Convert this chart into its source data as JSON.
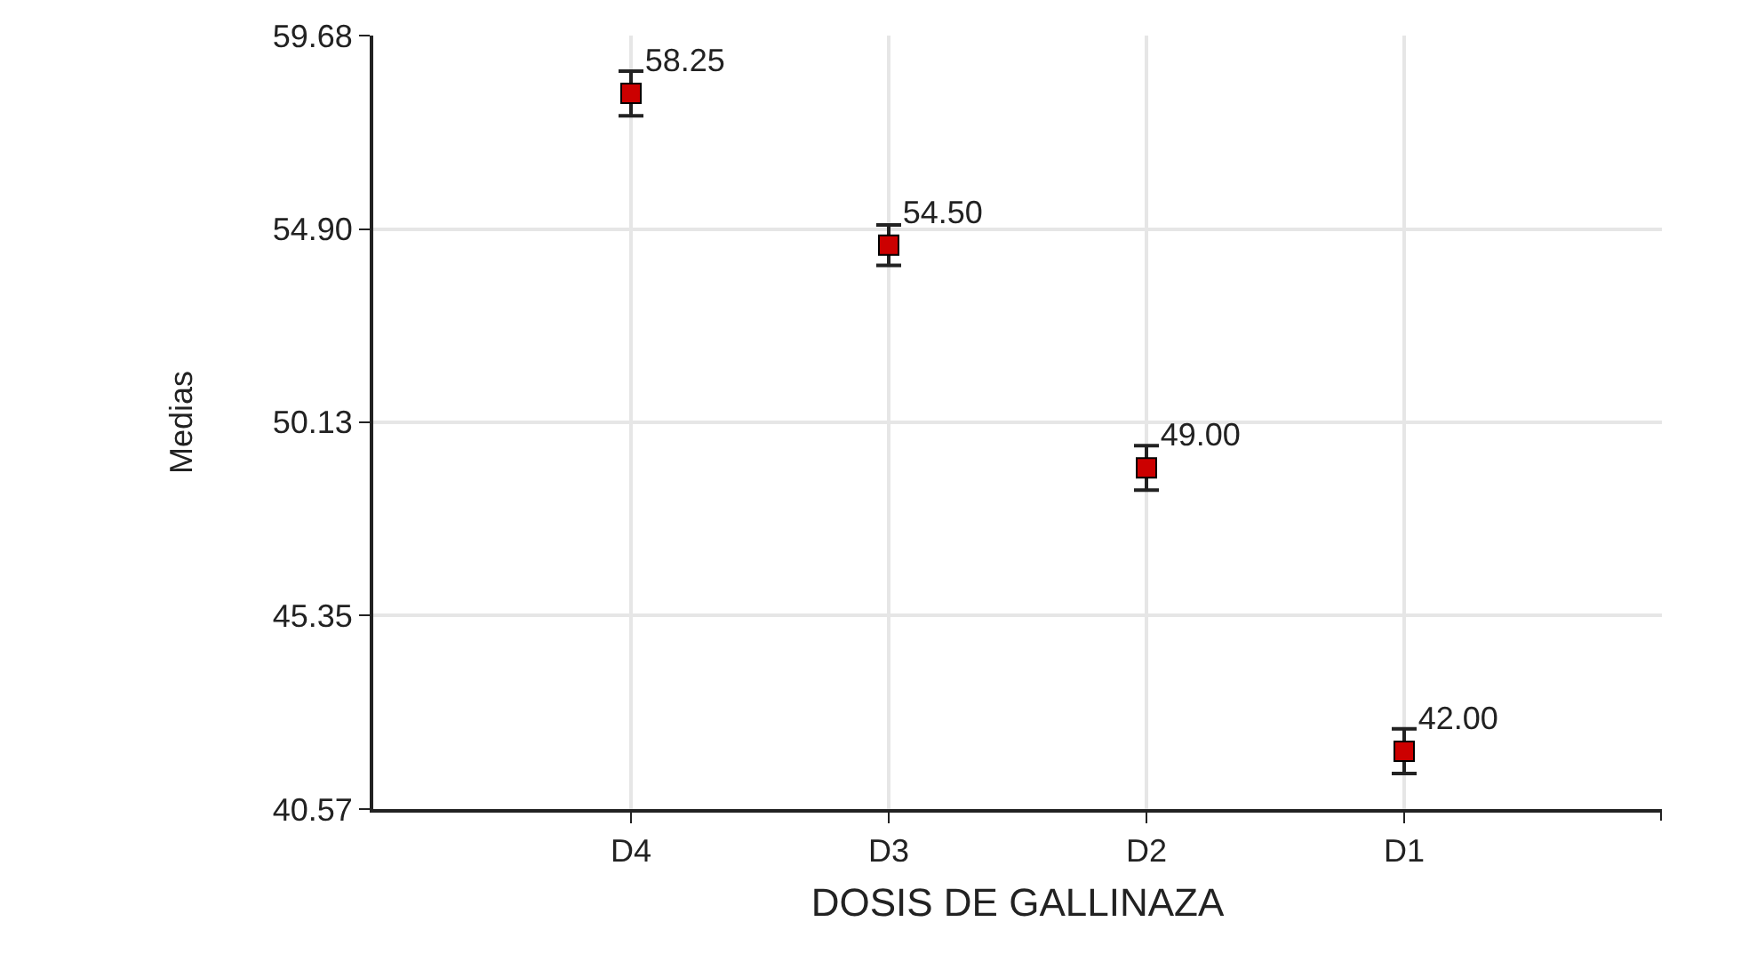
{
  "chart_data": {
    "type": "scatter",
    "xlabel": "DOSIS DE GALLINAZA",
    "ylabel": "Medias",
    "categories": [
      "D4",
      "D3",
      "D2",
      "D1"
    ],
    "series": [
      {
        "color": "#cc0000",
        "values": [
          58.25,
          54.5,
          49.0,
          42.0
        ],
        "errors": [
          0.55,
          0.5,
          0.55,
          0.55
        ],
        "value_labels": [
          "58.25",
          "54.50",
          "49.00",
          "42.00"
        ]
      }
    ],
    "ylim": [
      40.57,
      59.68
    ],
    "yticks": [
      {
        "value": 40.57,
        "label": "40.57"
      },
      {
        "value": 45.35,
        "label": "45.35"
      },
      {
        "value": 50.13,
        "label": "50.13"
      },
      {
        "value": 54.9,
        "label": "54.90"
      },
      {
        "value": 59.68,
        "label": "59.68"
      }
    ],
    "grid": true,
    "marker": "square"
  }
}
